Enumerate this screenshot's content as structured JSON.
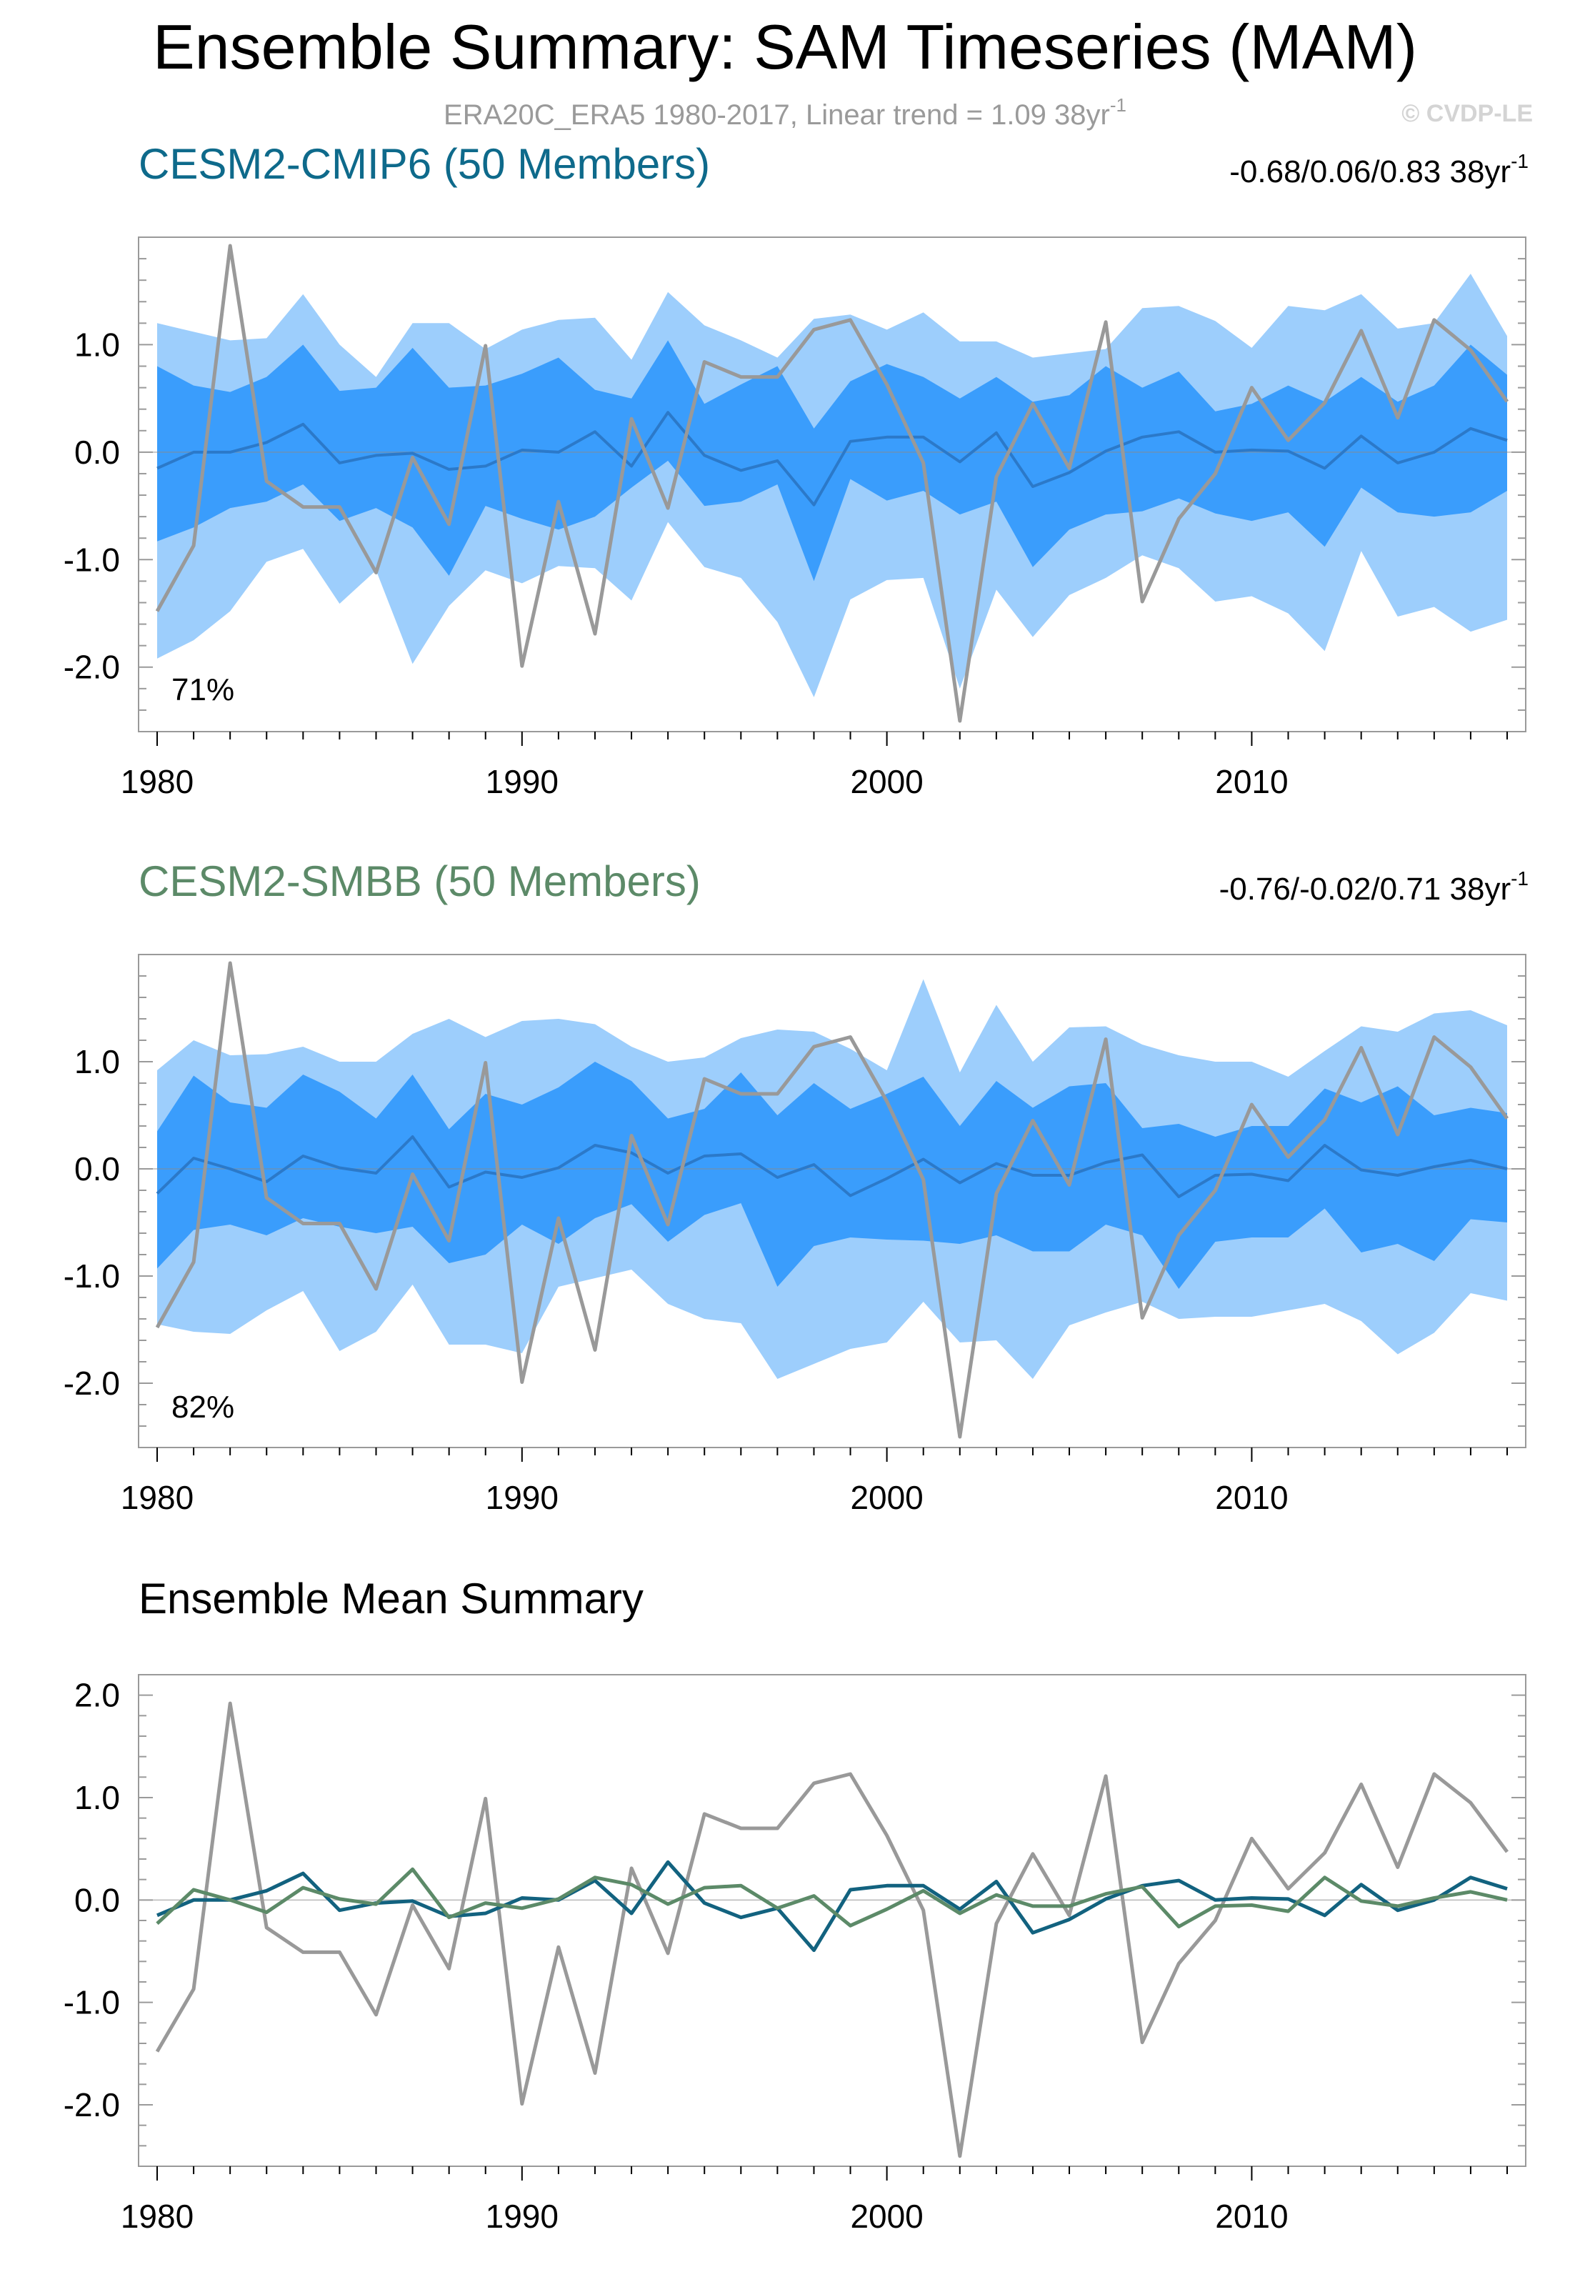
{
  "title": "Ensemble Summary: SAM Timeseries (MAM)",
  "subtitle": {
    "text": "ERA20C_ERA5 1980-2017, Linear trend = 1.09 38yr",
    "sup": "-1"
  },
  "credit": "© CVDP-LE",
  "colors": {
    "obs": "#999999",
    "band_outer": "#9dcefc",
    "band_inner": "#3a9dfc",
    "mean_cmip6": "#2b79c9",
    "mean_smbb": "#2b79c9",
    "cmip6_title": "#0e6a8b",
    "smbb_title": "#5c8a68",
    "cmip6_line": "#12627f",
    "smbb_line": "#5c8a68"
  },
  "chart_data": [
    {
      "id": "cmip6",
      "type": "area",
      "title": "CESM2-CMIP6 (50 Members)",
      "range_label": "-0.68/0.06/0.83 38yr",
      "range_sup": "-1",
      "percent_label": "71%",
      "x": [
        1980,
        1981,
        1982,
        1983,
        1984,
        1985,
        1986,
        1987,
        1988,
        1989,
        1990,
        1991,
        1992,
        1993,
        1994,
        1995,
        1996,
        1997,
        1998,
        1999,
        2000,
        2001,
        2002,
        2003,
        2004,
        2005,
        2006,
        2007,
        2008,
        2009,
        2010,
        2011,
        2012,
        2013,
        2014,
        2015,
        2016,
        2017
      ],
      "xticks": [
        "1980",
        "1990",
        "2000",
        "2010"
      ],
      "yticks": [
        "1.0",
        "0.0",
        "-1.0",
        "-2.0"
      ],
      "ylim": [
        -2.6,
        2.0
      ],
      "obs": [
        -1.48,
        -0.87,
        1.92,
        -0.27,
        -0.51,
        -0.51,
        -1.12,
        -0.05,
        -0.67,
        0.99,
        -1.99,
        -0.46,
        -1.69,
        0.31,
        -0.52,
        0.84,
        0.7,
        0.7,
        1.14,
        1.23,
        0.63,
        -0.1,
        -2.5,
        -0.23,
        0.45,
        -0.15,
        1.21,
        -1.39,
        -0.62,
        -0.2,
        0.6,
        0.11,
        0.46,
        1.13,
        0.32,
        1.23,
        0.95,
        0.47
      ],
      "mean": [
        -0.15,
        0.0,
        0.0,
        0.09,
        0.26,
        -0.1,
        -0.03,
        -0.01,
        -0.16,
        -0.13,
        0.02,
        0.0,
        0.19,
        -0.13,
        0.37,
        -0.03,
        -0.17,
        -0.08,
        -0.49,
        0.1,
        0.14,
        0.14,
        -0.09,
        0.18,
        -0.32,
        -0.19,
        0.01,
        0.14,
        0.19,
        0.0,
        0.02,
        0.01,
        -0.15,
        0.15,
        -0.1,
        0.0,
        0.22,
        0.11
      ],
      "inner_upper": [
        0.8,
        0.62,
        0.56,
        0.7,
        1.0,
        0.57,
        0.6,
        0.97,
        0.6,
        0.62,
        0.73,
        0.88,
        0.58,
        0.5,
        1.04,
        0.45,
        0.63,
        0.8,
        0.22,
        0.66,
        0.82,
        0.7,
        0.5,
        0.7,
        0.47,
        0.53,
        0.8,
        0.6,
        0.75,
        0.38,
        0.45,
        0.62,
        0.47,
        0.7,
        0.47,
        0.62,
        1.0,
        0.72
      ],
      "inner_lower": [
        -0.83,
        -0.7,
        -0.52,
        -0.46,
        -0.3,
        -0.64,
        -0.52,
        -0.7,
        -1.15,
        -0.5,
        -0.62,
        -0.72,
        -0.6,
        -0.33,
        -0.08,
        -0.5,
        -0.46,
        -0.3,
        -1.2,
        -0.25,
        -0.45,
        -0.36,
        -0.58,
        -0.46,
        -1.07,
        -0.72,
        -0.58,
        -0.55,
        -0.43,
        -0.57,
        -0.64,
        -0.56,
        -0.88,
        -0.33,
        -0.56,
        -0.6,
        -0.56,
        -0.36
      ],
      "outer_upper": [
        1.2,
        1.12,
        1.04,
        1.06,
        1.47,
        1.0,
        0.7,
        1.2,
        1.2,
        0.96,
        1.14,
        1.23,
        1.25,
        0.86,
        1.49,
        1.18,
        1.04,
        0.88,
        1.24,
        1.28,
        1.14,
        1.3,
        1.03,
        1.03,
        0.88,
        0.92,
        0.96,
        1.34,
        1.36,
        1.22,
        0.97,
        1.36,
        1.32,
        1.47,
        1.15,
        1.2,
        1.66,
        1.08
      ],
      "outer_lower": [
        -1.92,
        -1.75,
        -1.48,
        -1.02,
        -0.9,
        -1.41,
        -1.1,
        -1.97,
        -1.43,
        -1.1,
        -1.22,
        -1.06,
        -1.08,
        -1.38,
        -0.65,
        -1.07,
        -1.17,
        -1.58,
        -2.28,
        -1.37,
        -1.19,
        -1.17,
        -2.2,
        -1.28,
        -1.72,
        -1.33,
        -1.17,
        -0.96,
        -1.08,
        -1.39,
        -1.34,
        -1.5,
        -1.85,
        -0.92,
        -1.53,
        -1.44,
        -1.67,
        -1.56
      ]
    },
    {
      "id": "smbb",
      "type": "area",
      "title": "CESM2-SMBB (50 Members)",
      "range_label": "-0.76/-0.02/0.71 38yr",
      "range_sup": "-1",
      "percent_label": "82%",
      "x": [
        1980,
        1981,
        1982,
        1983,
        1984,
        1985,
        1986,
        1987,
        1988,
        1989,
        1990,
        1991,
        1992,
        1993,
        1994,
        1995,
        1996,
        1997,
        1998,
        1999,
        2000,
        2001,
        2002,
        2003,
        2004,
        2005,
        2006,
        2007,
        2008,
        2009,
        2010,
        2011,
        2012,
        2013,
        2014,
        2015,
        2016,
        2017
      ],
      "xticks": [
        "1980",
        "1990",
        "2000",
        "2010"
      ],
      "yticks": [
        "1.0",
        "0.0",
        "-1.0",
        "-2.0"
      ],
      "ylim": [
        -2.6,
        2.0
      ],
      "obs": [
        -1.48,
        -0.87,
        1.92,
        -0.27,
        -0.51,
        -0.51,
        -1.12,
        -0.05,
        -0.67,
        0.99,
        -1.99,
        -0.46,
        -1.69,
        0.31,
        -0.52,
        0.84,
        0.7,
        0.7,
        1.14,
        1.23,
        0.63,
        -0.1,
        -2.5,
        -0.23,
        0.45,
        -0.15,
        1.21,
        -1.39,
        -0.62,
        -0.2,
        0.6,
        0.11,
        0.46,
        1.13,
        0.32,
        1.23,
        0.95,
        0.47
      ],
      "mean": [
        -0.23,
        0.1,
        0.0,
        -0.12,
        0.12,
        0.01,
        -0.04,
        0.3,
        -0.17,
        -0.03,
        -0.08,
        0.01,
        0.22,
        0.15,
        -0.04,
        0.12,
        0.14,
        -0.08,
        0.04,
        -0.25,
        -0.09,
        0.09,
        -0.13,
        0.05,
        -0.06,
        -0.06,
        0.06,
        0.13,
        -0.26,
        -0.06,
        -0.05,
        -0.11,
        0.22,
        -0.01,
        -0.06,
        0.02,
        0.08,
        0.0
      ],
      "inner_upper": [
        0.35,
        0.87,
        0.62,
        0.57,
        0.88,
        0.72,
        0.47,
        0.88,
        0.37,
        0.7,
        0.6,
        0.76,
        1.0,
        0.82,
        0.47,
        0.56,
        0.9,
        0.5,
        0.8,
        0.56,
        0.7,
        0.86,
        0.4,
        0.82,
        0.57,
        0.77,
        0.8,
        0.38,
        0.42,
        0.3,
        0.4,
        0.4,
        0.75,
        0.62,
        0.77,
        0.5,
        0.57,
        0.52
      ],
      "inner_lower": [
        -0.93,
        -0.57,
        -0.52,
        -0.62,
        -0.46,
        -0.54,
        -0.6,
        -0.54,
        -0.88,
        -0.8,
        -0.52,
        -0.7,
        -0.46,
        -0.33,
        -0.68,
        -0.43,
        -0.32,
        -1.1,
        -0.72,
        -0.64,
        -0.66,
        -0.67,
        -0.7,
        -0.62,
        -0.77,
        -0.77,
        -0.52,
        -0.62,
        -1.12,
        -0.68,
        -0.64,
        -0.64,
        -0.37,
        -0.78,
        -0.7,
        -0.86,
        -0.47,
        -0.5
      ],
      "outer_upper": [
        0.92,
        1.2,
        1.06,
        1.07,
        1.14,
        1.0,
        1.0,
        1.26,
        1.4,
        1.23,
        1.38,
        1.4,
        1.35,
        1.14,
        1.0,
        1.04,
        1.22,
        1.3,
        1.28,
        1.12,
        0.92,
        1.77,
        0.9,
        1.53,
        1.0,
        1.32,
        1.33,
        1.16,
        1.06,
        1.0,
        1.0,
        0.86,
        1.1,
        1.33,
        1.28,
        1.45,
        1.48,
        1.34
      ],
      "outer_lower": [
        -1.45,
        -1.52,
        -1.54,
        -1.32,
        -1.14,
        -1.7,
        -1.52,
        -1.08,
        -1.64,
        -1.64,
        -1.72,
        -1.1,
        -1.02,
        -0.94,
        -1.26,
        -1.4,
        -1.44,
        -1.96,
        -1.82,
        -1.68,
        -1.62,
        -1.24,
        -1.62,
        -1.6,
        -1.96,
        -1.46,
        -1.34,
        -1.24,
        -1.4,
        -1.38,
        -1.38,
        -1.32,
        -1.26,
        -1.42,
        -1.73,
        -1.53,
        -1.16,
        -1.23
      ]
    },
    {
      "id": "summary",
      "type": "line",
      "title": "Ensemble Mean Summary",
      "x": [
        1980,
        1981,
        1982,
        1983,
        1984,
        1985,
        1986,
        1987,
        1988,
        1989,
        1990,
        1991,
        1992,
        1993,
        1994,
        1995,
        1996,
        1997,
        1998,
        1999,
        2000,
        2001,
        2002,
        2003,
        2004,
        2005,
        2006,
        2007,
        2008,
        2009,
        2010,
        2011,
        2012,
        2013,
        2014,
        2015,
        2016,
        2017
      ],
      "xticks": [
        "1980",
        "1990",
        "2000",
        "2010"
      ],
      "yticks": [
        "2.0",
        "1.0",
        "0.0",
        "-1.0",
        "-2.0"
      ],
      "ylim": [
        -2.6,
        2.2
      ],
      "series": [
        {
          "name": "ERA20C_ERA5",
          "values": [
            -1.48,
            -0.87,
            1.92,
            -0.27,
            -0.51,
            -0.51,
            -1.12,
            -0.05,
            -0.67,
            0.99,
            -1.99,
            -0.46,
            -1.69,
            0.31,
            -0.52,
            0.84,
            0.7,
            0.7,
            1.14,
            1.23,
            0.63,
            -0.1,
            -2.5,
            -0.23,
            0.45,
            -0.15,
            1.21,
            -1.39,
            -0.62,
            -0.2,
            0.6,
            0.11,
            0.46,
            1.13,
            0.32,
            1.23,
            0.95,
            0.47
          ]
        },
        {
          "name": "CESM2-CMIP6",
          "values": [
            -0.15,
            0.0,
            0.0,
            0.09,
            0.26,
            -0.1,
            -0.03,
            -0.01,
            -0.16,
            -0.13,
            0.02,
            0.0,
            0.19,
            -0.13,
            0.37,
            -0.03,
            -0.17,
            -0.08,
            -0.49,
            0.1,
            0.14,
            0.14,
            -0.09,
            0.18,
            -0.32,
            -0.19,
            0.01,
            0.14,
            0.19,
            0.0,
            0.02,
            0.01,
            -0.15,
            0.15,
            -0.1,
            0.0,
            0.22,
            0.11
          ]
        },
        {
          "name": "CESM2-SMBB",
          "values": [
            -0.23,
            0.1,
            0.0,
            -0.12,
            0.12,
            0.01,
            -0.04,
            0.3,
            -0.17,
            -0.03,
            -0.08,
            0.01,
            0.22,
            0.15,
            -0.04,
            0.12,
            0.14,
            -0.08,
            0.04,
            -0.25,
            -0.09,
            0.09,
            -0.13,
            0.05,
            -0.06,
            -0.06,
            0.06,
            0.13,
            -0.26,
            -0.06,
            -0.05,
            -0.11,
            0.22,
            -0.01,
            -0.06,
            0.02,
            0.08,
            0.0
          ]
        }
      ]
    }
  ]
}
